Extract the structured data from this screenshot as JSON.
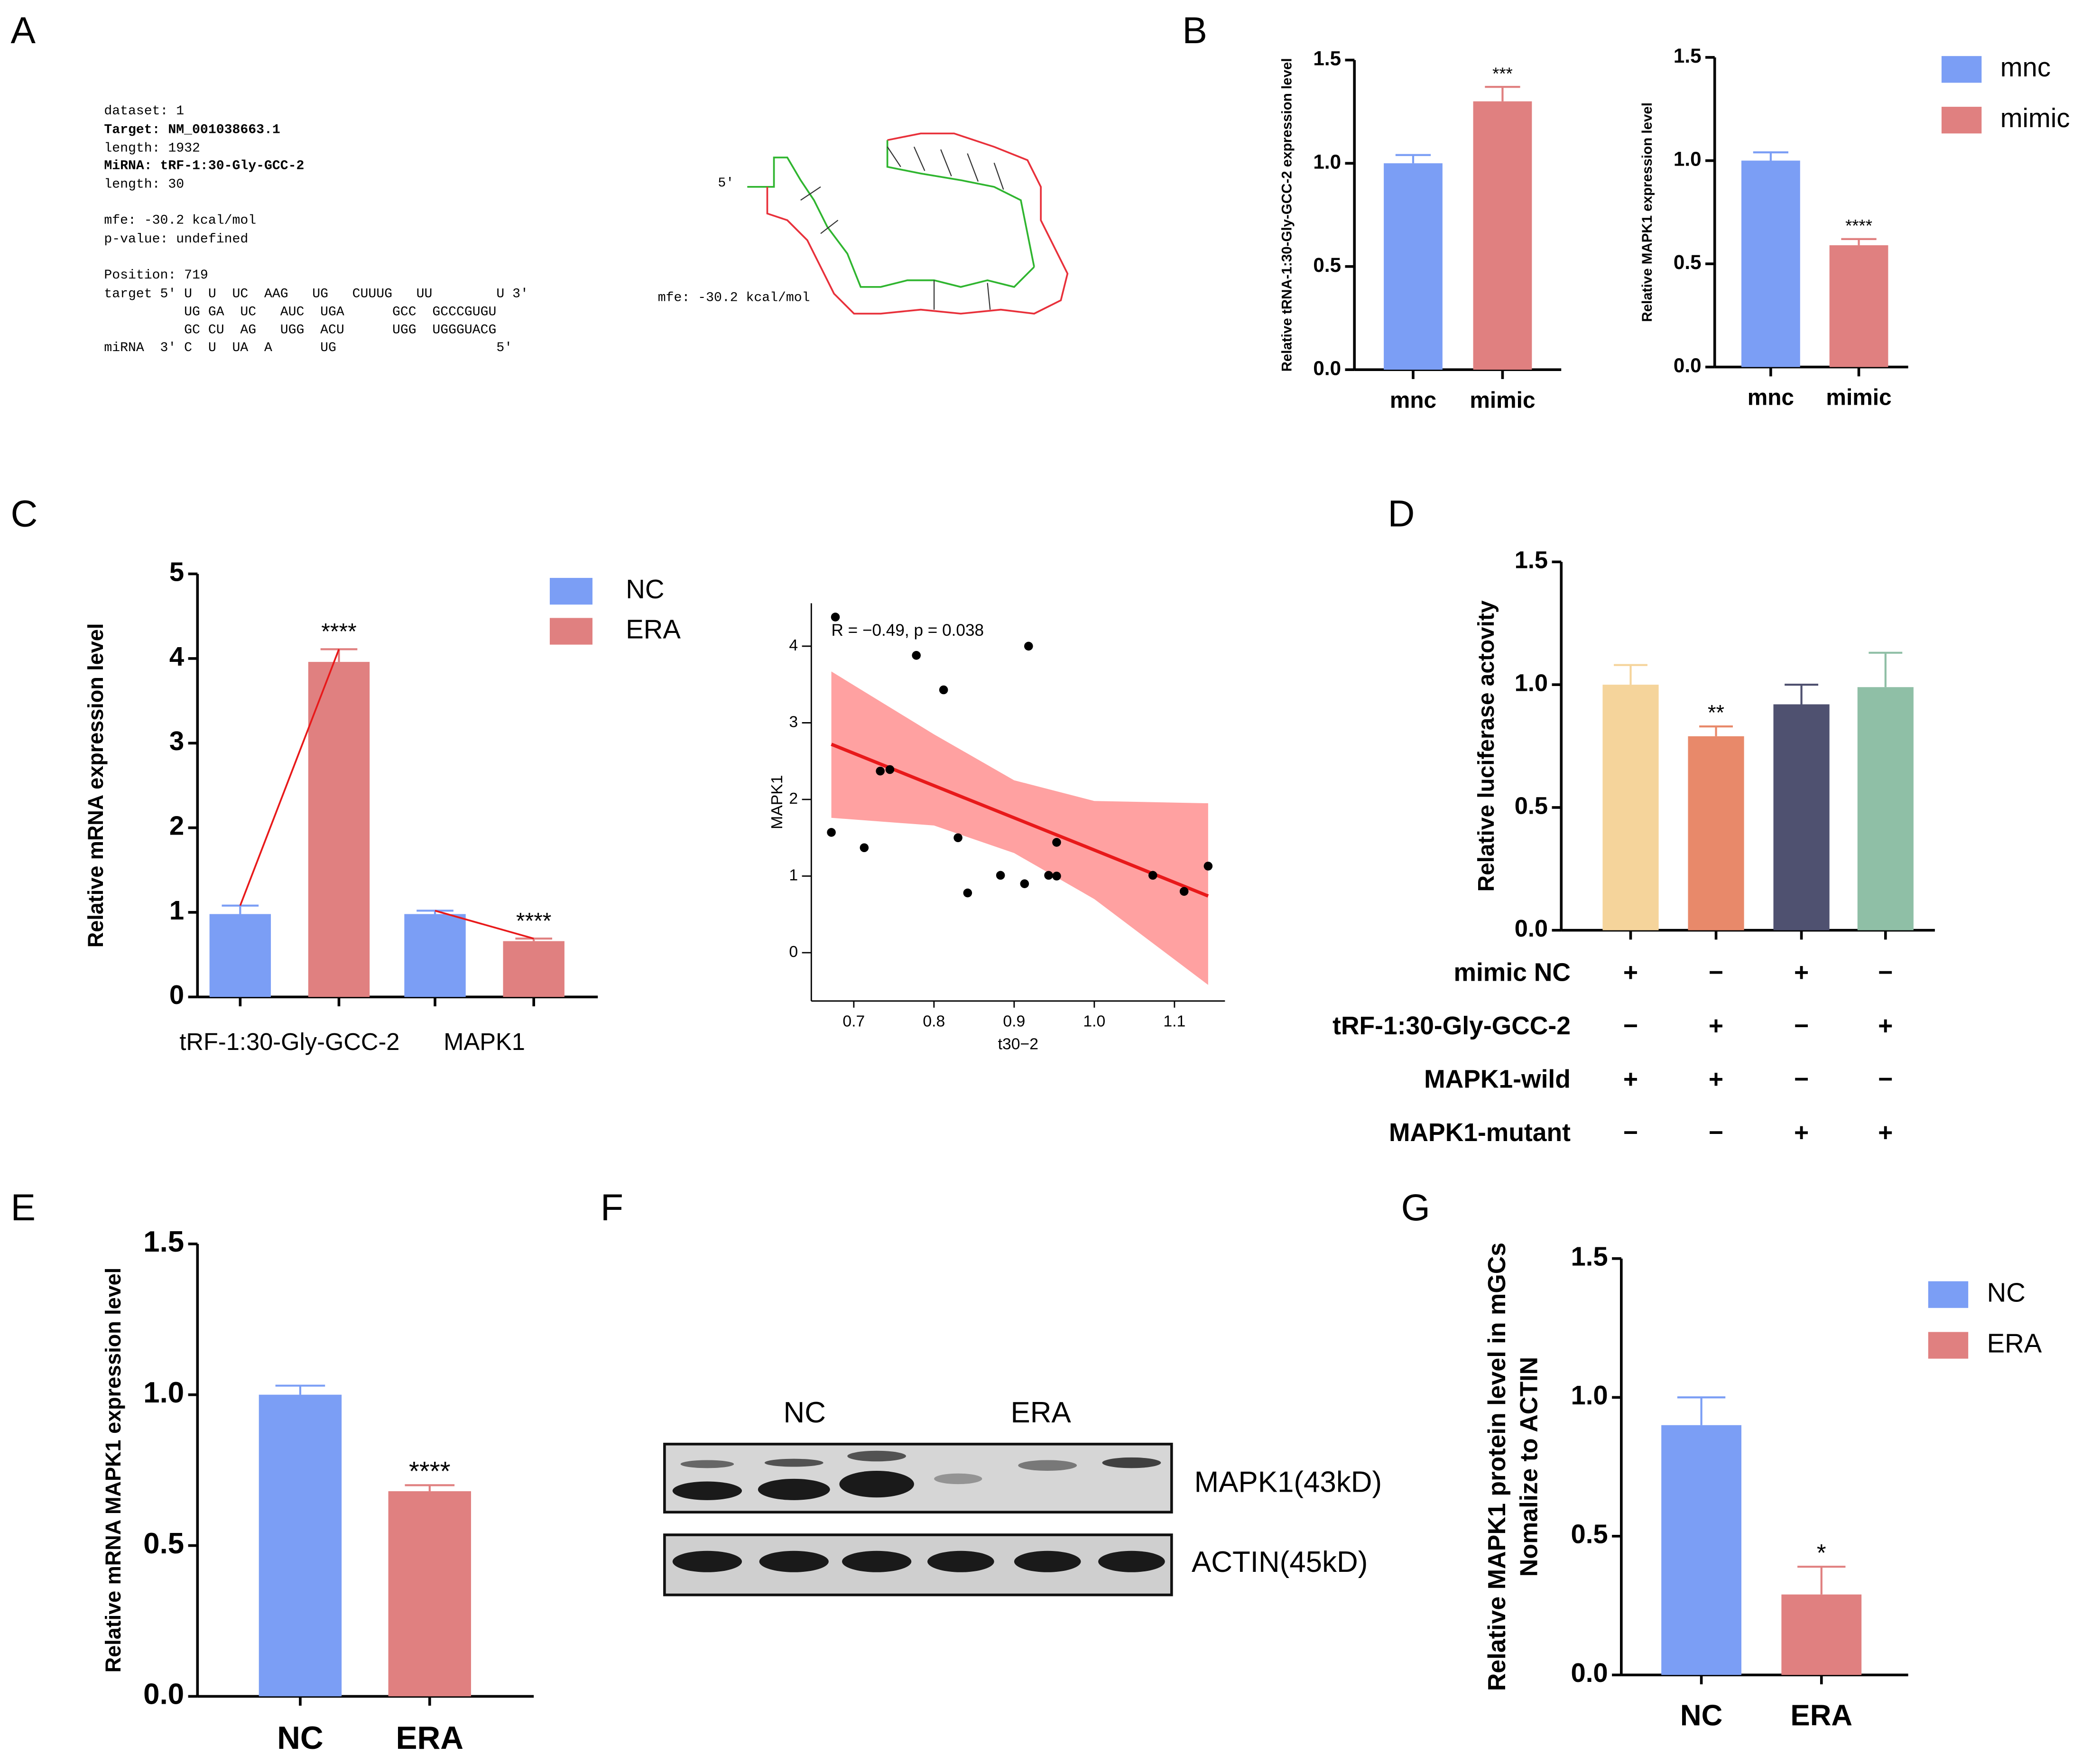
{
  "panel_labels": [
    "A",
    "B",
    "C",
    "D",
    "E",
    "F",
    "G"
  ],
  "panel_a": {
    "info": [
      "dataset: 1",
      "Target: NM_001038663.1",
      "length: 1932",
      "MiRNA: tRF-1:30-Gly-GCC-2",
      "length: 30",
      "mfe: -30.2 kcal/mol",
      "p-value: undefined",
      "Position: 719"
    ],
    "alignment": [
      "target 5' U  U  UC  AAG   UG   CUUUG   UU        U 3'",
      "          UG GA  UC   AUC  UGA      GCC  GCCCGUGU",
      "          GC CU  AG   UGG  ACU      UGG  UGGGUACG",
      "miRNA  3' C  U  UA  A      UG                    5'"
    ],
    "structure_labels": [
      "5'",
      "mfe: -30.2 kcal/mol"
    ]
  },
  "chart_data": [
    {
      "type": "bar",
      "categories": [
        "mnc",
        "mimic"
      ],
      "values": [
        1.0,
        1.3
      ],
      "errors": [
        0.04,
        0.07
      ],
      "colors": [
        "#7b9ef5",
        "#e08080"
      ],
      "annotations": [
        {
          "category": 1,
          "text": "***"
        }
      ],
      "ylabel": [
        "Relative tRNA-1:30-Gly-GCC-2  expression level"
      ],
      "ylim": [
        0,
        1.5
      ],
      "yticks": [
        {
          "value": 0,
          "label": "0.0"
        },
        0.5,
        {
          "value": 1,
          "label": "1.0"
        },
        1.5
      ]
    },
    {
      "type": "bar",
      "categories": [
        "mnc",
        "mimic"
      ],
      "values": [
        1.0,
        0.59
      ],
      "errors": [
        0.04,
        0.03
      ],
      "colors": [
        "#7b9ef5",
        "#e08080"
      ],
      "annotations": [
        {
          "category": 1,
          "text": "****"
        }
      ],
      "ylabel": [
        "Relative MAPK1  expression level"
      ],
      "ylim": [
        0,
        1.5
      ],
      "yticks": [
        {
          "value": 0,
          "label": "0.0"
        },
        0.5,
        {
          "value": 1,
          "label": "1.0"
        },
        1.5
      ],
      "legend": true
    },
    {
      "type": "grouped_bar",
      "categories": [
        "tRF-1:30-Gly-GCC-2",
        "MAPK1"
      ],
      "series": [
        {
          "name": "NC",
          "color": "#7b9ef5",
          "values": [
            0.98,
            0.98
          ],
          "errors": [
            0.1,
            0.04
          ]
        },
        {
          "name": "ERA",
          "color": "#e08080",
          "values": [
            3.96,
            0.66
          ],
          "errors": [
            0.15,
            0.03
          ]
        }
      ],
      "annotations": [
        {
          "category": 0,
          "text": "****"
        },
        {
          "category": 1,
          "text": "****"
        }
      ],
      "ylabel": [
        "Relative mRNA  expression level"
      ],
      "ylim": [
        0,
        5
      ],
      "yticks": [
        0,
        1,
        2,
        3,
        4,
        5
      ],
      "legend": true
    },
    {
      "type": "scatter",
      "x": [
        0.677,
        0.778,
        0.812,
        0.918,
        0.672,
        0.713,
        0.733,
        0.745,
        0.83,
        0.842,
        0.883,
        0.913,
        0.943,
        0.953,
        0.953,
        1.073,
        1.112,
        1.142
      ],
      "values": [
        4.38,
        3.88,
        3.43,
        4.0,
        1.57,
        1.37,
        2.37,
        2.39,
        1.5,
        0.78,
        1.01,
        0.9,
        1.01,
        1.0,
        1.44,
        1.01,
        0.8,
        1.13
      ],
      "color": "#000000",
      "fit": {
        "x": [
          0.672,
          0.8,
          0.9,
          1.0,
          1.142
        ],
        "values": [
          2.72,
          2.18,
          1.76,
          1.34,
          0.74
        ],
        "lower": [
          1.76,
          1.66,
          1.3,
          0.7,
          -0.42
        ],
        "upper": [
          3.67,
          2.85,
          2.25,
          1.98,
          1.95
        ],
        "color": "#e8191a",
        "band_color": "#ff8a8a"
      },
      "annotation": "R = −0.49, p = 0.038",
      "xlabel": "t30−2",
      "ylabel": [
        "MAPK1"
      ],
      "xlim": [
        0.647,
        1.163
      ],
      "ylim": [
        -0.63,
        4.56
      ],
      "xticks": [
        0.7,
        0.8,
        0.9,
        {
          "value": 1,
          "label": "1.0"
        },
        1.1
      ],
      "yticks": [
        0,
        1,
        2,
        3,
        4
      ]
    },
    {
      "type": "bar",
      "values": [
        1.0,
        0.79,
        0.92,
        0.99
      ],
      "errors": [
        0.08,
        0.04,
        0.08,
        0.14
      ],
      "colors": [
        "#f5d49b",
        "#e8896a",
        "#4f5170",
        "#8fbfa6"
      ],
      "annotations": [
        {
          "category": 1,
          "text": "**"
        }
      ],
      "ylabel": [
        "Relative  luciferase actovity"
      ],
      "ylim": [
        0,
        1.5
      ],
      "yticks": [
        {
          "value": 0,
          "label": "0.0"
        },
        0.5,
        {
          "value": 1,
          "label": "1.0"
        },
        1.5
      ],
      "conditions": [
        {
          "label": "mimic NC",
          "signs": [
            "+",
            "−",
            "+",
            "−"
          ]
        },
        {
          "label": "tRF-1:30-Gly-GCC-2",
          "signs": [
            "−",
            "+",
            "−",
            "+"
          ]
        },
        {
          "label": "MAPK1-wild",
          "signs": [
            "+",
            "+",
            "−",
            "−"
          ]
        },
        {
          "label": "MAPK1-mutant",
          "signs": [
            "−",
            "−",
            "+",
            "+"
          ]
        }
      ]
    },
    {
      "type": "bar",
      "categories": [
        "NC",
        "ERA"
      ],
      "values": [
        1.0,
        0.68
      ],
      "errors": [
        0.03,
        0.02
      ],
      "colors": [
        "#7b9ef5",
        "#e08080"
      ],
      "annotations": [
        {
          "category": 1,
          "text": "****"
        }
      ],
      "ylabel": [
        "Relative mRNA MAPK1  expression level"
      ],
      "ylim": [
        0,
        1.5
      ],
      "yticks": [
        {
          "value": 0,
          "label": "0.0"
        },
        0.5,
        {
          "value": 1,
          "label": "1.0"
        },
        1.5
      ]
    },
    {
      "type": "bar",
      "categories": [
        "NC",
        "ERA"
      ],
      "values": [
        0.9,
        0.29
      ],
      "errors": [
        0.1,
        0.1
      ],
      "colors": [
        "#7b9ef5",
        "#e08080"
      ],
      "annotations": [
        {
          "category": 1,
          "text": "*"
        }
      ],
      "ylabel": [
        "Relative  MAPK1 protein level in mGCs",
        "Nomalize to ACTIN"
      ],
      "ylim": [
        0,
        1.5
      ],
      "yticks": [
        {
          "value": 0,
          "label": "0.0"
        },
        0.5,
        {
          "value": 1,
          "label": "1.0"
        },
        1.5
      ],
      "legend": true
    }
  ],
  "blot": {
    "groups": [
      "NC",
      "ERA"
    ],
    "bands": [
      "MAPK1(43kD)",
      "ACTIN(45kD)"
    ]
  }
}
